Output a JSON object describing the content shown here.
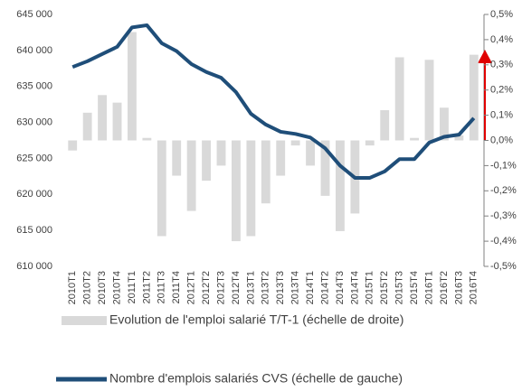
{
  "chart_data": {
    "type": "bar_line",
    "categories": [
      "2010T1",
      "2010T2",
      "2010T3",
      "2010T4",
      "2011T1",
      "2011T2",
      "2011T3",
      "2011T4",
      "2012T1",
      "2012T2",
      "2012T3",
      "2012T4",
      "2013T1",
      "2013T2",
      "2013T3",
      "2013T4",
      "2014T1",
      "2014T2",
      "2014T3",
      "2014T4",
      "2015T1",
      "2015T2",
      "2015T3",
      "2015T4",
      "2016T1",
      "2016T2",
      "2016T3",
      "2016T4"
    ],
    "series": [
      {
        "name": "Evolution de l'emploi salarié T/T-1 (échelle de droite)",
        "type": "bar",
        "axis": "y2",
        "color": "#d9d9d9",
        "values": [
          -0.04,
          0.11,
          0.18,
          0.15,
          0.43,
          0.01,
          -0.38,
          -0.14,
          -0.28,
          -0.16,
          -0.1,
          -0.4,
          -0.38,
          -0.25,
          -0.14,
          -0.02,
          -0.1,
          -0.22,
          -0.36,
          -0.29,
          -0.02,
          0.12,
          0.33,
          0.01,
          0.32,
          0.13,
          0.02,
          0.34
        ]
      },
      {
        "name": "Nombre d'emplois salariés CVS (échelle de gauche)",
        "type": "line",
        "axis": "y",
        "color": "#1f4e79",
        "values": [
          637700,
          638500,
          639500,
          640500,
          643200,
          643500,
          641000,
          639900,
          638100,
          637000,
          636200,
          634200,
          631200,
          629700,
          628700,
          628400,
          627900,
          626400,
          624000,
          622300,
          622300,
          623200,
          624900,
          624900,
          627200,
          628000,
          628300,
          630600
        ]
      }
    ],
    "ylim": [
      610000,
      645000
    ],
    "yticks": [
      {
        "value": 610000,
        "label": "610 000"
      },
      {
        "value": 615000,
        "label": "615 000"
      },
      {
        "value": 620000,
        "label": "620 000"
      },
      {
        "value": 625000,
        "label": "625 000"
      },
      {
        "value": 630000,
        "label": "630 000"
      },
      {
        "value": 635000,
        "label": "635 000"
      },
      {
        "value": 640000,
        "label": "640 000"
      },
      {
        "value": 645000,
        "label": "645 000"
      }
    ],
    "y2lim": [
      -0.5,
      0.5
    ],
    "y2ticks": [
      {
        "value": -0.5,
        "label": "-0,5%"
      },
      {
        "value": -0.4,
        "label": "-0,4%"
      },
      {
        "value": -0.3,
        "label": "-0,3%"
      },
      {
        "value": -0.2,
        "label": "-0,2%"
      },
      {
        "value": -0.1,
        "label": "-0,1%"
      },
      {
        "value": 0,
        "label": "0,0%"
      },
      {
        "value": 0.1,
        "label": "0,1%"
      },
      {
        "value": 0.2,
        "label": "0,2%"
      },
      {
        "value": 0.3,
        "label": "0,3%"
      },
      {
        "value": 0.4,
        "label": "0,4%"
      },
      {
        "value": 0.5,
        "label": "0,5%"
      }
    ],
    "legend": "bottom"
  }
}
